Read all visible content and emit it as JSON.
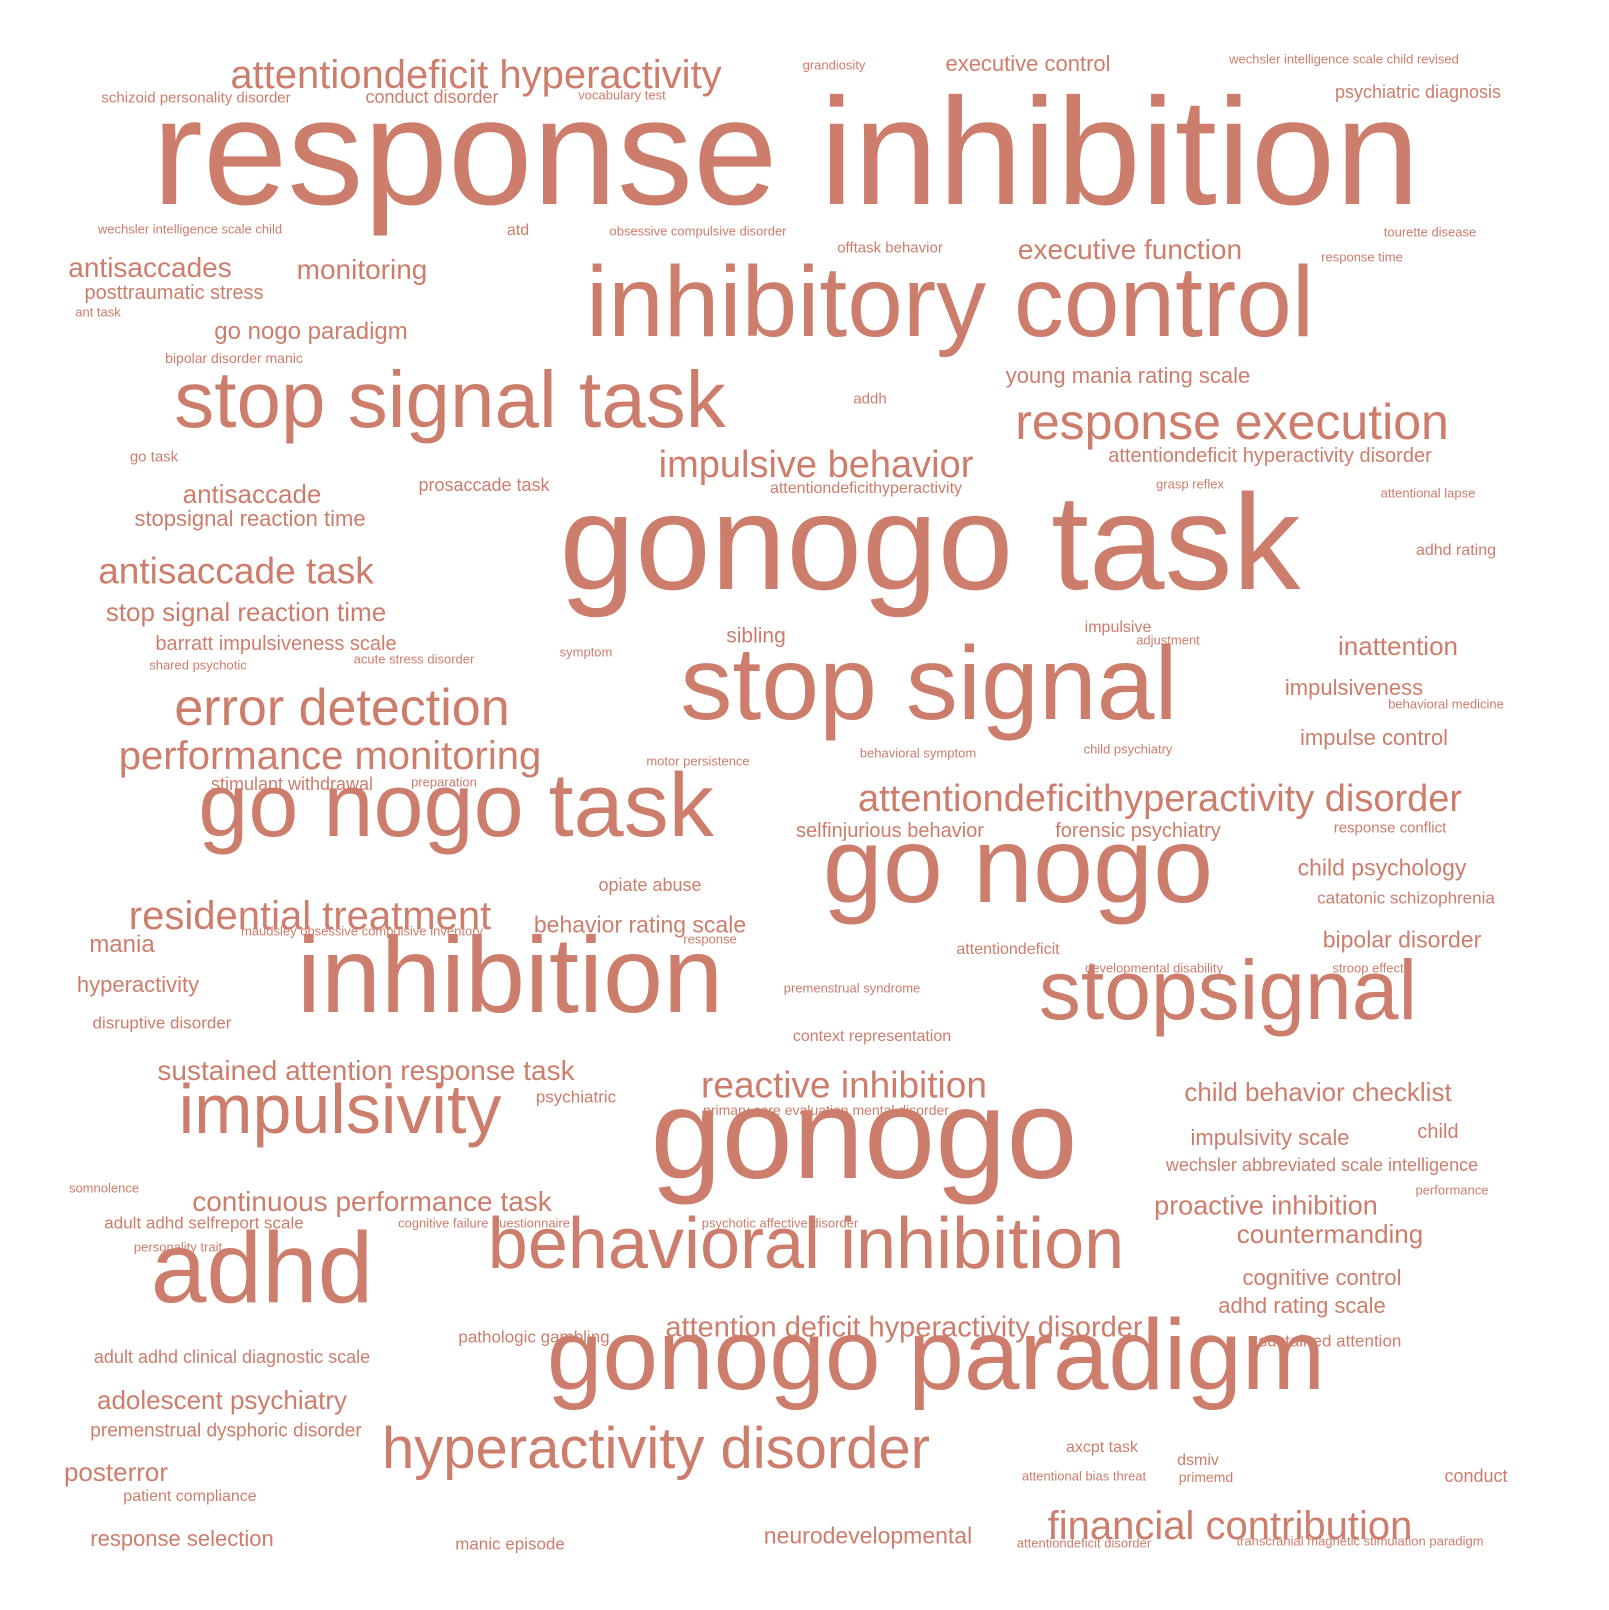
{
  "text_color": "#cd7d6b",
  "words": [
    "response inhibition",
    "inhibitory control",
    "gonogo task",
    "stop signal",
    "gonogo",
    "gonogo paradigm",
    "go nogo",
    "inhibition",
    "stop signal task",
    "go nogo task",
    "stopsignal",
    "adhd",
    "behavioral inhibition",
    "impulsivity",
    "hyperactivity disorder",
    "response execution",
    "error detection",
    "attentiondeficit hyperactivity",
    "impulsive behavior",
    "attentiondeficithyperactivity disorder",
    "performance monitoring",
    "residential treatment",
    "antisaccade task",
    "financial contribution",
    "reactive inhibition",
    "attention deficit hyperactivity disorder",
    "executive function",
    "antisaccades",
    "monitoring",
    "continuous performance task",
    "sustained attention response task",
    "antisaccade",
    "stop signal reaction time",
    "go nogo paradigm",
    "adolescent psychiatry",
    "child behavior checklist",
    "proactive inhibition",
    "countermanding",
    "posterror",
    "inattention",
    "impulsiveness",
    "young mania rating scale",
    "stopsignal reaction time",
    "attentiondeficit hyperactivity disorder",
    "executive control",
    "behavior rating scale",
    "neurodevelopmental",
    "mania",
    "cognitive control",
    "child psychology",
    "bipolar disorder",
    "barratt impulsiveness scale",
    "impulsivity scale",
    "adhd rating scale",
    "impulse control",
    "psychiatric diagnosis",
    "posttraumatic stress",
    "hyperactivity",
    "selfinjurious behavior",
    "forensic psychiatry",
    "response selection",
    "sibling",
    "child",
    "premenstrual dysphoric disorder",
    "adult adhd clinical diagnostic scale",
    "wechsler abbreviated scale intelligence",
    "catatonic schizophrenia",
    "sustained attention",
    "conduct disorder",
    "stimulant withdrawal",
    "adult adhd selfreport scale",
    "prosaccade task",
    "opiate abuse",
    "psychiatric",
    "conduct",
    "context representation",
    "attentiondeficit",
    "pathologic gambling",
    "manic episode",
    "schizoid personality disorder",
    "disruptive disorder",
    "attentiondeficithyperactivity",
    "axcpt task",
    "dsmiv",
    "adhd rating",
    "patient compliance",
    "impulsive",
    "response conflict",
    "atd",
    "offtask behavior",
    "go task",
    "addh",
    "primary care evaluation mental disorder",
    "bipolar disorder manic",
    "primemd",
    "wechsler intelligence scale child",
    "response time",
    "tourette disease",
    "obsessive compulsive disorder",
    "vocabulary test",
    "grandiosity",
    "wechsler intelligence scale child revised",
    "ant task",
    "grasp reflex",
    "attentional lapse",
    "shared psychotic",
    "acute stress disorder",
    "symptom",
    "adjustment",
    "behavioral medicine",
    "motor persistence",
    "behavioral symptom",
    "child psychiatry",
    "preparation",
    "maudsley obsessive compulsive inventory",
    "response",
    "developmental disability",
    "stroop effect",
    "premenstrual syndrome",
    "somnolence",
    "performance",
    "cognitive failure questionnaire",
    "psychotic affective disorder",
    "personality trait",
    "attentional bias threat",
    "attentiondeficit disorder",
    "transcranial magnetic stimulation paradigm"
  ]
}
